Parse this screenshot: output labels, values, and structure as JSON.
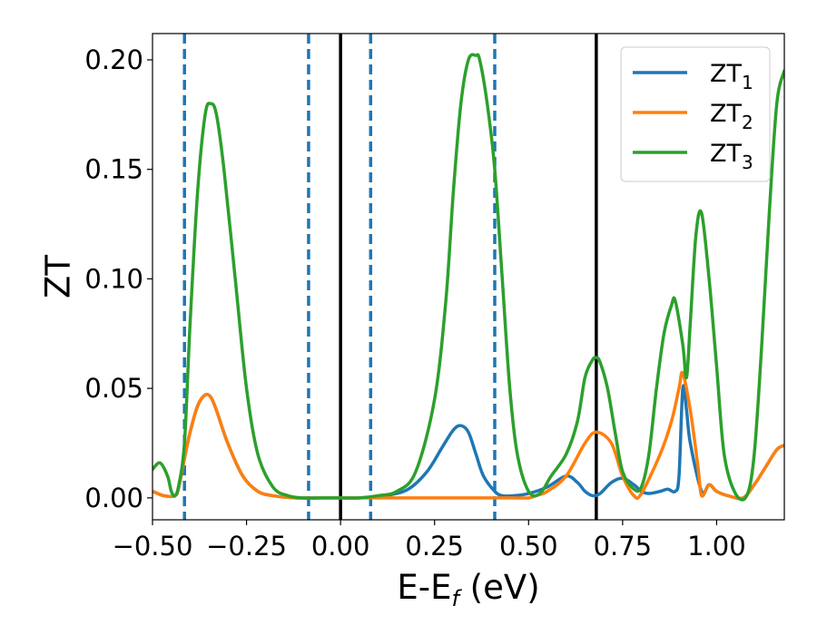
{
  "chart_data": {
    "type": "line",
    "xlabel": "E-E",
    "xlabel_sub": "f",
    "xlabel_unit": " (eV)",
    "ylabel": "ZT",
    "xlim": [
      -0.5,
      1.18
    ],
    "ylim": [
      -0.01,
      0.212
    ],
    "x_ticks": [
      -0.5,
      -0.25,
      0.0,
      0.25,
      0.5,
      0.75,
      1.0
    ],
    "x_tick_labels": [
      "−0.50",
      "−0.25",
      "0.00",
      "0.25",
      "0.50",
      "0.75",
      "1.00"
    ],
    "y_ticks": [
      0.0,
      0.05,
      0.1,
      0.15,
      0.2
    ],
    "y_tick_labels": [
      "0.00",
      "0.05",
      "0.10",
      "0.15",
      "0.20"
    ],
    "grid": false,
    "legend_position": "top-right",
    "vlines_dashed": [
      -0.415,
      -0.085,
      0.08,
      0.41
    ],
    "vlines_solid": [
      0.0,
      0.68
    ],
    "vline_dashed_color": "#1f77b4",
    "vline_solid_color": "#000000",
    "series": [
      {
        "name": "ZT",
        "name_sub": "1",
        "color": "#1f77b4",
        "x": [
          -0.5,
          -0.47,
          -0.44,
          -0.43,
          -0.415,
          -0.4,
          -0.38,
          -0.36,
          -0.345,
          -0.33,
          -0.3,
          -0.26,
          -0.22,
          -0.18,
          -0.12,
          -0.05,
          0.0,
          0.05,
          0.12,
          0.18,
          0.23,
          0.27,
          0.3,
          0.32,
          0.34,
          0.36,
          0.38,
          0.41,
          0.43,
          0.46,
          0.5,
          0.55,
          0.6,
          0.63,
          0.65,
          0.67,
          0.69,
          0.72,
          0.75,
          0.78,
          0.8,
          0.82,
          0.85,
          0.87,
          0.89,
          0.9,
          0.91,
          0.92,
          0.93,
          0.96,
          0.98,
          1.0,
          1.03,
          1.07,
          1.1,
          1.13,
          1.16,
          1.18
        ],
        "y": [
          0.003,
          0.001,
          0.001,
          0.005,
          0.018,
          0.03,
          0.042,
          0.047,
          0.046,
          0.04,
          0.025,
          0.01,
          0.003,
          0.001,
          0.0,
          0.0,
          0.0,
          0.0,
          0.001,
          0.004,
          0.012,
          0.023,
          0.031,
          0.033,
          0.03,
          0.02,
          0.01,
          0.003,
          0.001,
          0.001,
          0.002,
          0.005,
          0.01,
          0.007,
          0.003,
          0.001,
          0.002,
          0.007,
          0.009,
          0.006,
          0.003,
          0.002,
          0.003,
          0.004,
          0.003,
          0.01,
          0.05,
          0.04,
          0.025,
          0.003,
          0.006,
          0.003,
          0.001,
          0.0,
          0.006,
          0.014,
          0.022,
          0.024
        ]
      },
      {
        "name": "ZT",
        "name_sub": "2",
        "color": "#ff7f0e",
        "x": [
          -0.5,
          -0.47,
          -0.44,
          -0.43,
          -0.415,
          -0.4,
          -0.38,
          -0.36,
          -0.345,
          -0.33,
          -0.3,
          -0.26,
          -0.22,
          -0.18,
          -0.12,
          -0.05,
          0.0,
          0.05,
          0.12,
          0.18,
          0.25,
          0.35,
          0.45,
          0.5,
          0.52,
          0.55,
          0.6,
          0.65,
          0.68,
          0.72,
          0.75,
          0.78,
          0.8,
          0.85,
          0.88,
          0.9,
          0.91,
          0.93,
          0.95,
          0.96,
          0.98,
          1.0,
          1.03,
          1.07,
          1.1,
          1.13,
          1.16,
          1.18
        ],
        "y": [
          0.003,
          0.001,
          0.001,
          0.005,
          0.018,
          0.03,
          0.042,
          0.047,
          0.046,
          0.04,
          0.025,
          0.01,
          0.003,
          0.001,
          0.0,
          0.0,
          0.0,
          0.0,
          0.0,
          0.0,
          0.0,
          0.0,
          0.0,
          0.0,
          0.001,
          0.003,
          0.01,
          0.025,
          0.03,
          0.025,
          0.01,
          0.001,
          0.002,
          0.02,
          0.035,
          0.05,
          0.057,
          0.04,
          0.015,
          0.001,
          0.006,
          0.003,
          0.001,
          0.0,
          0.006,
          0.014,
          0.022,
          0.024
        ]
      },
      {
        "name": "ZT",
        "name_sub": "3",
        "color": "#2ca02c",
        "x": [
          -0.5,
          -0.48,
          -0.46,
          -0.45,
          -0.44,
          -0.43,
          -0.415,
          -0.4,
          -0.38,
          -0.36,
          -0.345,
          -0.33,
          -0.31,
          -0.28,
          -0.25,
          -0.22,
          -0.18,
          -0.14,
          -0.1,
          -0.05,
          0.0,
          0.05,
          0.1,
          0.15,
          0.2,
          0.25,
          0.28,
          0.3,
          0.32,
          0.34,
          0.36,
          0.37,
          0.39,
          0.41,
          0.43,
          0.45,
          0.47,
          0.5,
          0.53,
          0.56,
          0.6,
          0.63,
          0.65,
          0.67,
          0.68,
          0.69,
          0.71,
          0.73,
          0.75,
          0.78,
          0.8,
          0.82,
          0.84,
          0.86,
          0.88,
          0.89,
          0.91,
          0.92,
          0.93,
          0.945,
          0.96,
          0.98,
          1.0,
          1.02,
          1.05,
          1.08,
          1.1,
          1.12,
          1.14,
          1.16,
          1.18
        ],
        "y": [
          0.013,
          0.016,
          0.01,
          0.003,
          0.001,
          0.006,
          0.025,
          0.08,
          0.14,
          0.175,
          0.18,
          0.175,
          0.15,
          0.1,
          0.05,
          0.02,
          0.005,
          0.001,
          0.0,
          0.0,
          0.0,
          0.0,
          0.001,
          0.003,
          0.012,
          0.045,
          0.09,
          0.14,
          0.18,
          0.2,
          0.202,
          0.2,
          0.18,
          0.15,
          0.1,
          0.05,
          0.02,
          0.003,
          0.002,
          0.01,
          0.02,
          0.035,
          0.055,
          0.063,
          0.064,
          0.062,
          0.05,
          0.03,
          0.012,
          0.004,
          0.005,
          0.02,
          0.05,
          0.075,
          0.088,
          0.09,
          0.07,
          0.055,
          0.08,
          0.12,
          0.13,
          0.1,
          0.06,
          0.02,
          0.002,
          0.001,
          0.02,
          0.07,
          0.13,
          0.18,
          0.195
        ]
      }
    ]
  }
}
